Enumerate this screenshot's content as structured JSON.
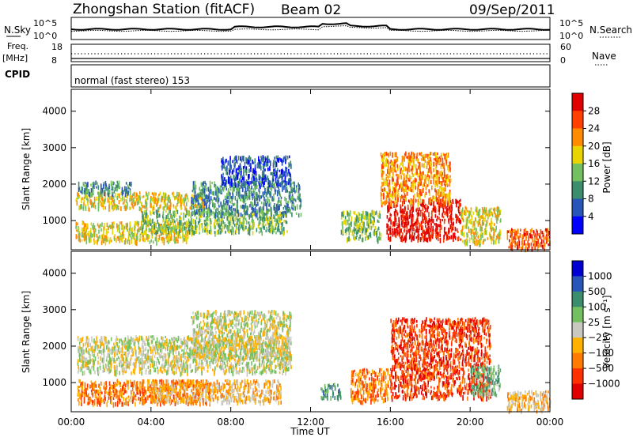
{
  "header": {
    "station": "Zhongshan Station (fitACF)",
    "beam": "Beam 02",
    "date": "09/Sep/2011"
  },
  "noise_panel": {
    "left_label": "N.Sky",
    "right_label": "N.Search",
    "left_ticks": [
      "10^5",
      "10^0"
    ],
    "right_ticks": [
      "10^5",
      "10^0"
    ]
  },
  "freq_panel": {
    "left_label_top": "Freq.",
    "left_label_bottom": "[MHz]",
    "right_label": "Nave",
    "left_ticks": [
      "18",
      "8"
    ],
    "right_ticks": [
      "60",
      "0"
    ]
  },
  "cpid_panel": {
    "label": "CPID",
    "text": "normal (fast stereo) 153"
  },
  "colors": {
    "power_scale": [
      "#0000ff",
      "#2a55b8",
      "#3c8c6e",
      "#74c060",
      "#e8d400",
      "#ff8c00",
      "#ff4000",
      "#e00000"
    ],
    "velocity_scale": [
      "#0000d0",
      "#2a55b8",
      "#3c8c6e",
      "#74c060",
      "#c8c8c0",
      "#ffb000",
      "#ff7a00",
      "#ff3000",
      "#e00000"
    ]
  },
  "chart_data": [
    {
      "type": "heatmap",
      "name": "power",
      "ylabel": "Slant Range [km]",
      "ylim": [
        200,
        4600
      ],
      "yticks": [
        "1000",
        "2000",
        "3000",
        "4000"
      ],
      "xlim_hours": [
        0,
        24
      ],
      "colorbar_label": "Power [dB]",
      "colorbar_ticks": [
        "4",
        "8",
        "12",
        "16",
        "20",
        "24",
        "28"
      ],
      "features": [
        {
          "t0": 0.2,
          "t1": 6.8,
          "r0": 1350,
          "r1": 1800,
          "level": 4
        },
        {
          "t0": 0.3,
          "t1": 3.0,
          "r0": 1750,
          "r1": 2100,
          "level": 2
        },
        {
          "t0": 0.2,
          "t1": 6.0,
          "r0": 450,
          "r1": 1000,
          "level": 4
        },
        {
          "t0": 3.5,
          "t1": 10.8,
          "r0": 700,
          "r1": 1300,
          "level": 3
        },
        {
          "t0": 6.0,
          "t1": 11.5,
          "r0": 1200,
          "r1": 2100,
          "level": 2
        },
        {
          "t0": 7.5,
          "t1": 11.0,
          "r0": 2000,
          "r1": 2800,
          "level": 1
        },
        {
          "t0": 15.8,
          "t1": 19.5,
          "r0": 500,
          "r1": 1600,
          "level": 7
        },
        {
          "t0": 15.5,
          "t1": 19.0,
          "r0": 1500,
          "r1": 2900,
          "level": 5
        },
        {
          "t0": 13.5,
          "t1": 15.5,
          "r0": 500,
          "r1": 1300,
          "level": 3
        },
        {
          "t0": 19.5,
          "t1": 21.5,
          "r0": 400,
          "r1": 1400,
          "level": 4
        },
        {
          "t0": 21.8,
          "t1": 24.0,
          "r0": 250,
          "r1": 800,
          "level": 6
        }
      ]
    },
    {
      "type": "heatmap",
      "name": "velocity",
      "ylabel": "Slant Range [km]",
      "ylim": [
        200,
        4600
      ],
      "yticks": [
        "1000",
        "2000",
        "3000",
        "4000"
      ],
      "xlim_hours": [
        0,
        24
      ],
      "xticks": [
        "00:00",
        "04:00",
        "08:00",
        "12:00",
        "16:00",
        "20:00",
        "00:00"
      ],
      "xlabel": "Time UT",
      "colorbar_label": "Velocity [m s⁻¹]",
      "colorbar_ticks": [
        "1000",
        "500",
        "100",
        "25",
        "−25",
        "−100",
        "−500",
        "−1000"
      ],
      "features": [
        {
          "t0": 0.3,
          "t1": 11.0,
          "r0": 1300,
          "r1": 2300,
          "level": 4
        },
        {
          "t0": 6.0,
          "t1": 11.0,
          "r0": 1700,
          "r1": 3000,
          "level": 4
        },
        {
          "t0": 0.3,
          "t1": 7.0,
          "r0": 450,
          "r1": 1100,
          "level": 6
        },
        {
          "t0": 4.0,
          "t1": 10.5,
          "r0": 500,
          "r1": 1100,
          "level": 5
        },
        {
          "t0": 12.5,
          "t1": 13.5,
          "r0": 600,
          "r1": 1000,
          "level": 2
        },
        {
          "t0": 14.0,
          "t1": 16.0,
          "r0": 500,
          "r1": 1400,
          "level": 6
        },
        {
          "t0": 16.0,
          "t1": 21.0,
          "r0": 600,
          "r1": 2800,
          "level": 7
        },
        {
          "t0": 20.0,
          "t1": 21.5,
          "r0": 700,
          "r1": 1500,
          "level": 3
        },
        {
          "t0": 21.8,
          "t1": 24.0,
          "r0": 250,
          "r1": 800,
          "level": 5
        }
      ]
    }
  ]
}
